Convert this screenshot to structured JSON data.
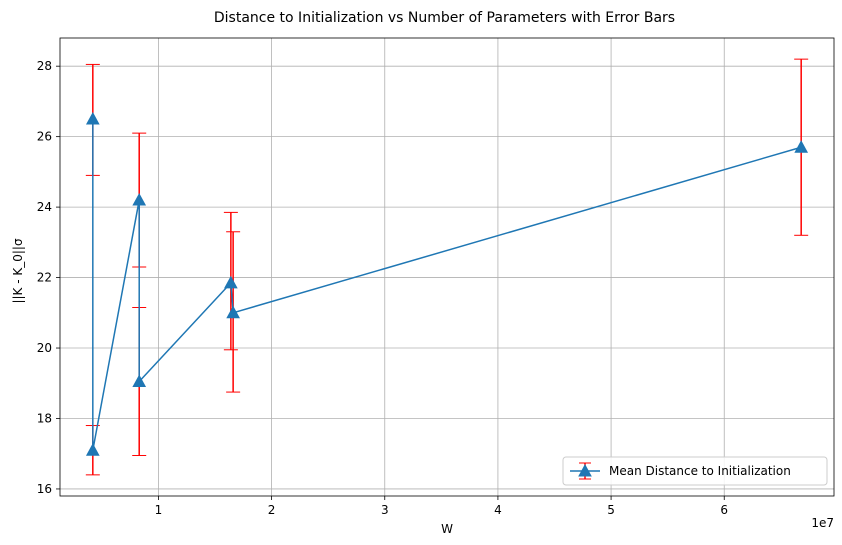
{
  "chart_data": {
    "type": "line",
    "title": "Distance to Initialization vs Number of Parameters with Error Bars",
    "xlabel": "W",
    "ylabel": "||K - K_0||σ",
    "x_offset_text": "1e7",
    "xlim": [
      1300000,
      69700000
    ],
    "ylim": [
      15.8,
      28.8
    ],
    "x_ticks": [
      1,
      2,
      3,
      4,
      5,
      6
    ],
    "y_ticks": [
      16,
      18,
      20,
      22,
      24,
      26,
      28
    ],
    "grid": true,
    "legend_position": "lower-right",
    "series": [
      {
        "name": "Mean Distance to Initialization",
        "color": "#1f77b4",
        "error_color": "#ff0000",
        "marker": "triangle-up",
        "points": [
          {
            "x": 4200000,
            "y": 26.5,
            "yerr_low": 24.9,
            "yerr_high": 28.05
          },
          {
            "x": 4200000,
            "y": 17.1,
            "yerr_low": 16.4,
            "yerr_high": 17.8
          },
          {
            "x": 8300000,
            "y": 24.2,
            "yerr_low": 22.3,
            "yerr_high": 26.1
          },
          {
            "x": 8300000,
            "y": 19.05,
            "yerr_low": 16.95,
            "yerr_high": 21.15
          },
          {
            "x": 16400000,
            "y": 21.85,
            "yerr_low": 19.95,
            "yerr_high": 23.85
          },
          {
            "x": 16600000,
            "y": 21.0,
            "yerr_low": 18.75,
            "yerr_high": 23.3
          },
          {
            "x": 66800000,
            "y": 25.7,
            "yerr_low": 23.2,
            "yerr_high": 28.2
          }
        ]
      }
    ]
  }
}
